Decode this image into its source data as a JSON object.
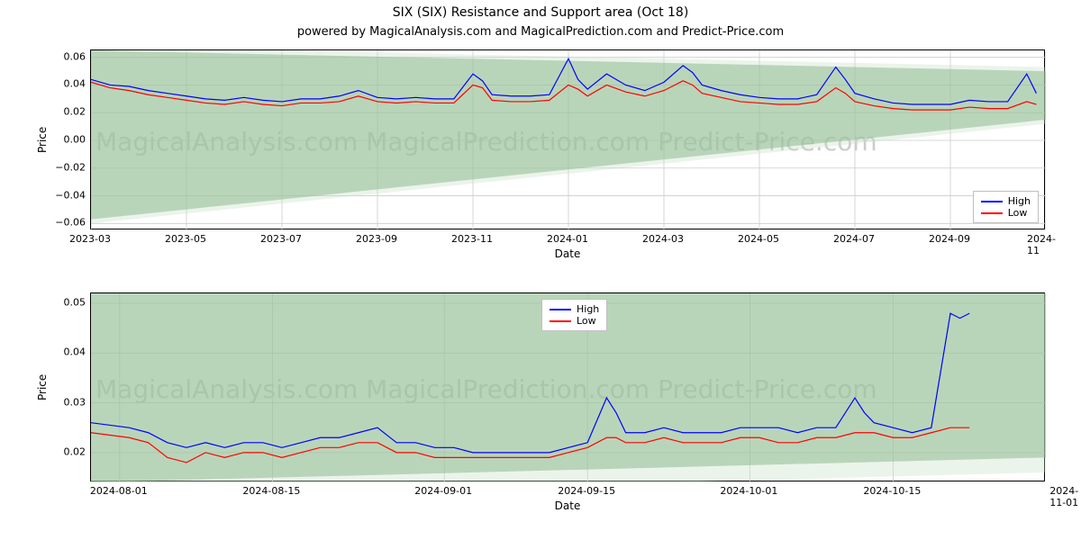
{
  "title": "SIX (SIX) Resistance and Support area (Oct 18)",
  "subtitle": "powered by MagicalAnalysis.com and MagicalPrediction.com and Predict-Price.com",
  "watermark_text": "MagicalAnalysis.com    MagicalPrediction.com    Predict-Price.com",
  "colors": {
    "high": "#0000ff",
    "low": "#ff0000",
    "grid": "#cccccc",
    "band_fill": "#8fbc8f",
    "band_fill_light": "#c5e0c5",
    "axis": "#000000",
    "bg": "#ffffff"
  },
  "legend": {
    "high": "High",
    "low": "Low"
  },
  "line_width": 1.2,
  "chart1": {
    "type": "line",
    "xlabel": "Date",
    "ylabel": "Price",
    "ylim": [
      -0.065,
      0.065
    ],
    "yticks": [
      -0.06,
      -0.04,
      -0.02,
      0.0,
      0.02,
      0.04,
      0.06
    ],
    "ytick_labels": [
      "−0.06",
      "−0.04",
      "−0.02",
      "0.00",
      "0.02",
      "0.04",
      "0.06"
    ],
    "xtick_labels": [
      "2023-03",
      "2023-05",
      "2023-07",
      "2023-09",
      "2023-11",
      "2024-01",
      "2024-03",
      "2024-05",
      "2024-07",
      "2024-09",
      "2024-11"
    ],
    "xtick_pos": [
      0,
      0.1,
      0.2,
      0.3,
      0.4,
      0.5,
      0.6,
      0.7,
      0.8,
      0.9,
      1.0
    ],
    "band_top": {
      "start": 0.065,
      "end": 0.05
    },
    "band_bot": {
      "start": -0.057,
      "end": 0.015
    },
    "high": [
      [
        0.0,
        0.044
      ],
      [
        0.02,
        0.04
      ],
      [
        0.04,
        0.039
      ],
      [
        0.06,
        0.036
      ],
      [
        0.08,
        0.034
      ],
      [
        0.1,
        0.032
      ],
      [
        0.12,
        0.03
      ],
      [
        0.14,
        0.029
      ],
      [
        0.16,
        0.031
      ],
      [
        0.18,
        0.029
      ],
      [
        0.2,
        0.028
      ],
      [
        0.22,
        0.03
      ],
      [
        0.24,
        0.03
      ],
      [
        0.26,
        0.032
      ],
      [
        0.28,
        0.036
      ],
      [
        0.3,
        0.031
      ],
      [
        0.32,
        0.03
      ],
      [
        0.34,
        0.031
      ],
      [
        0.36,
        0.03
      ],
      [
        0.38,
        0.03
      ],
      [
        0.4,
        0.048
      ],
      [
        0.41,
        0.043
      ],
      [
        0.42,
        0.033
      ],
      [
        0.44,
        0.032
      ],
      [
        0.46,
        0.032
      ],
      [
        0.48,
        0.033
      ],
      [
        0.5,
        0.059
      ],
      [
        0.51,
        0.044
      ],
      [
        0.52,
        0.037
      ],
      [
        0.54,
        0.048
      ],
      [
        0.56,
        0.04
      ],
      [
        0.58,
        0.036
      ],
      [
        0.6,
        0.042
      ],
      [
        0.62,
        0.054
      ],
      [
        0.63,
        0.049
      ],
      [
        0.64,
        0.04
      ],
      [
        0.66,
        0.036
      ],
      [
        0.68,
        0.033
      ],
      [
        0.7,
        0.031
      ],
      [
        0.72,
        0.03
      ],
      [
        0.74,
        0.03
      ],
      [
        0.76,
        0.033
      ],
      [
        0.78,
        0.053
      ],
      [
        0.79,
        0.044
      ],
      [
        0.8,
        0.034
      ],
      [
        0.82,
        0.03
      ],
      [
        0.84,
        0.027
      ],
      [
        0.86,
        0.026
      ],
      [
        0.88,
        0.026
      ],
      [
        0.9,
        0.026
      ],
      [
        0.92,
        0.029
      ],
      [
        0.94,
        0.028
      ],
      [
        0.96,
        0.028
      ],
      [
        0.98,
        0.048
      ],
      [
        0.99,
        0.034
      ]
    ],
    "low": [
      [
        0.0,
        0.042
      ],
      [
        0.02,
        0.038
      ],
      [
        0.04,
        0.036
      ],
      [
        0.06,
        0.033
      ],
      [
        0.08,
        0.031
      ],
      [
        0.1,
        0.029
      ],
      [
        0.12,
        0.027
      ],
      [
        0.14,
        0.026
      ],
      [
        0.16,
        0.028
      ],
      [
        0.18,
        0.026
      ],
      [
        0.2,
        0.025
      ],
      [
        0.22,
        0.027
      ],
      [
        0.24,
        0.027
      ],
      [
        0.26,
        0.028
      ],
      [
        0.28,
        0.032
      ],
      [
        0.3,
        0.028
      ],
      [
        0.32,
        0.027
      ],
      [
        0.34,
        0.028
      ],
      [
        0.36,
        0.027
      ],
      [
        0.38,
        0.027
      ],
      [
        0.4,
        0.04
      ],
      [
        0.41,
        0.038
      ],
      [
        0.42,
        0.029
      ],
      [
        0.44,
        0.028
      ],
      [
        0.46,
        0.028
      ],
      [
        0.48,
        0.029
      ],
      [
        0.5,
        0.04
      ],
      [
        0.51,
        0.037
      ],
      [
        0.52,
        0.032
      ],
      [
        0.54,
        0.04
      ],
      [
        0.56,
        0.035
      ],
      [
        0.58,
        0.032
      ],
      [
        0.6,
        0.036
      ],
      [
        0.62,
        0.043
      ],
      [
        0.63,
        0.04
      ],
      [
        0.64,
        0.034
      ],
      [
        0.66,
        0.031
      ],
      [
        0.68,
        0.028
      ],
      [
        0.7,
        0.027
      ],
      [
        0.72,
        0.026
      ],
      [
        0.74,
        0.026
      ],
      [
        0.76,
        0.028
      ],
      [
        0.78,
        0.038
      ],
      [
        0.79,
        0.034
      ],
      [
        0.8,
        0.028
      ],
      [
        0.82,
        0.025
      ],
      [
        0.84,
        0.023
      ],
      [
        0.86,
        0.022
      ],
      [
        0.88,
        0.022
      ],
      [
        0.9,
        0.022
      ],
      [
        0.92,
        0.024
      ],
      [
        0.94,
        0.023
      ],
      [
        0.96,
        0.023
      ],
      [
        0.98,
        0.028
      ],
      [
        0.99,
        0.026
      ]
    ]
  },
  "chart2": {
    "type": "line",
    "xlabel": "Date",
    "ylabel": "Price",
    "ylim": [
      0.014,
      0.052
    ],
    "yticks": [
      0.02,
      0.03,
      0.04,
      0.05
    ],
    "ytick_labels": [
      "0.02",
      "0.03",
      "0.04",
      "0.05"
    ],
    "xtick_labels": [
      "2024-08-01",
      "2024-08-15",
      "2024-09-01",
      "2024-09-15",
      "2024-10-01",
      "2024-10-15",
      "2024-11-01"
    ],
    "xtick_pos": [
      0.03,
      0.19,
      0.37,
      0.52,
      0.69,
      0.84,
      1.02
    ],
    "band_top": {
      "start": 0.052,
      "end": 0.052
    },
    "band_bot": {
      "start": 0.014,
      "end": 0.019
    },
    "high": [
      [
        0.0,
        0.026
      ],
      [
        0.04,
        0.025
      ],
      [
        0.06,
        0.024
      ],
      [
        0.08,
        0.022
      ],
      [
        0.1,
        0.021
      ],
      [
        0.12,
        0.022
      ],
      [
        0.14,
        0.021
      ],
      [
        0.16,
        0.022
      ],
      [
        0.18,
        0.022
      ],
      [
        0.2,
        0.021
      ],
      [
        0.22,
        0.022
      ],
      [
        0.24,
        0.023
      ],
      [
        0.26,
        0.023
      ],
      [
        0.28,
        0.024
      ],
      [
        0.3,
        0.025
      ],
      [
        0.32,
        0.022
      ],
      [
        0.34,
        0.022
      ],
      [
        0.36,
        0.021
      ],
      [
        0.38,
        0.021
      ],
      [
        0.4,
        0.02
      ],
      [
        0.42,
        0.02
      ],
      [
        0.44,
        0.02
      ],
      [
        0.46,
        0.02
      ],
      [
        0.48,
        0.02
      ],
      [
        0.5,
        0.021
      ],
      [
        0.52,
        0.022
      ],
      [
        0.54,
        0.031
      ],
      [
        0.55,
        0.028
      ],
      [
        0.56,
        0.024
      ],
      [
        0.58,
        0.024
      ],
      [
        0.6,
        0.025
      ],
      [
        0.62,
        0.024
      ],
      [
        0.64,
        0.024
      ],
      [
        0.66,
        0.024
      ],
      [
        0.68,
        0.025
      ],
      [
        0.7,
        0.025
      ],
      [
        0.72,
        0.025
      ],
      [
        0.74,
        0.024
      ],
      [
        0.76,
        0.025
      ],
      [
        0.78,
        0.025
      ],
      [
        0.8,
        0.031
      ],
      [
        0.81,
        0.028
      ],
      [
        0.82,
        0.026
      ],
      [
        0.84,
        0.025
      ],
      [
        0.86,
        0.024
      ],
      [
        0.88,
        0.025
      ],
      [
        0.9,
        0.048
      ],
      [
        0.91,
        0.047
      ],
      [
        0.92,
        0.048
      ]
    ],
    "low": [
      [
        0.0,
        0.024
      ],
      [
        0.04,
        0.023
      ],
      [
        0.06,
        0.022
      ],
      [
        0.08,
        0.019
      ],
      [
        0.1,
        0.018
      ],
      [
        0.12,
        0.02
      ],
      [
        0.14,
        0.019
      ],
      [
        0.16,
        0.02
      ],
      [
        0.18,
        0.02
      ],
      [
        0.2,
        0.019
      ],
      [
        0.22,
        0.02
      ],
      [
        0.24,
        0.021
      ],
      [
        0.26,
        0.021
      ],
      [
        0.28,
        0.022
      ],
      [
        0.3,
        0.022
      ],
      [
        0.32,
        0.02
      ],
      [
        0.34,
        0.02
      ],
      [
        0.36,
        0.019
      ],
      [
        0.38,
        0.019
      ],
      [
        0.4,
        0.019
      ],
      [
        0.42,
        0.019
      ],
      [
        0.44,
        0.019
      ],
      [
        0.46,
        0.019
      ],
      [
        0.48,
        0.019
      ],
      [
        0.5,
        0.02
      ],
      [
        0.52,
        0.021
      ],
      [
        0.54,
        0.023
      ],
      [
        0.55,
        0.023
      ],
      [
        0.56,
        0.022
      ],
      [
        0.58,
        0.022
      ],
      [
        0.6,
        0.023
      ],
      [
        0.62,
        0.022
      ],
      [
        0.64,
        0.022
      ],
      [
        0.66,
        0.022
      ],
      [
        0.68,
        0.023
      ],
      [
        0.7,
        0.023
      ],
      [
        0.72,
        0.022
      ],
      [
        0.74,
        0.022
      ],
      [
        0.76,
        0.023
      ],
      [
        0.78,
        0.023
      ],
      [
        0.8,
        0.024
      ],
      [
        0.81,
        0.024
      ],
      [
        0.82,
        0.024
      ],
      [
        0.84,
        0.023
      ],
      [
        0.86,
        0.023
      ],
      [
        0.88,
        0.024
      ],
      [
        0.9,
        0.025
      ],
      [
        0.91,
        0.025
      ],
      [
        0.92,
        0.025
      ]
    ]
  }
}
